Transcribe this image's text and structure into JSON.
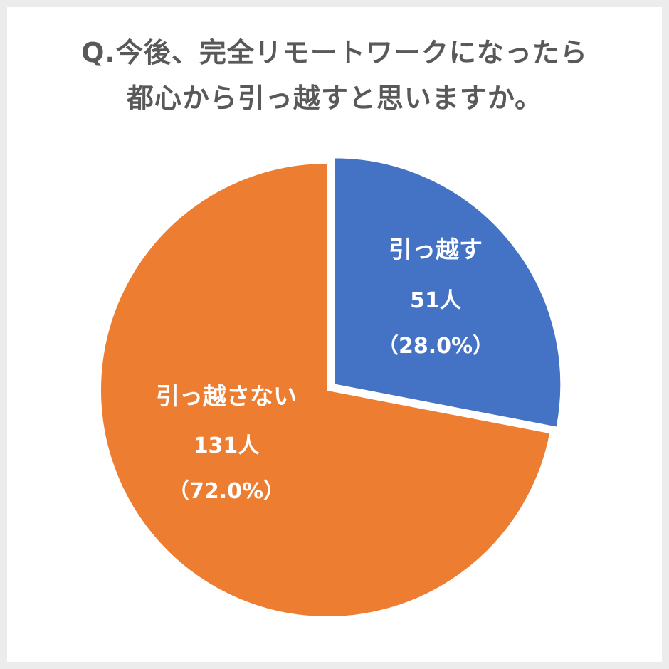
{
  "title": {
    "line1": "Q.今後、完全リモートワークになったら",
    "line2": "都心から引っ越すと思いますか。"
  },
  "colors": {
    "background": "#ececec",
    "panel": "#ffffff",
    "title_text": "#595959",
    "slice_move": "#4472c4",
    "slice_stay": "#ed7d31",
    "label_text": "#ffffff"
  },
  "chart_data": {
    "type": "pie",
    "title": "Q.今後、完全リモートワークになったら都心から引っ越すと思いますか。",
    "slices": [
      {
        "label": "引っ越す",
        "count": "51人",
        "percent_text": "（28.0%）",
        "value": 51,
        "percent": 28.0,
        "exploded": true
      },
      {
        "label": "引っ越さない",
        "count": "131人",
        "percent_text": "（72.0%）",
        "value": 131,
        "percent": 72.0,
        "exploded": false
      }
    ],
    "start_angle": "12 o'clock, clockwise",
    "legend": "none"
  }
}
